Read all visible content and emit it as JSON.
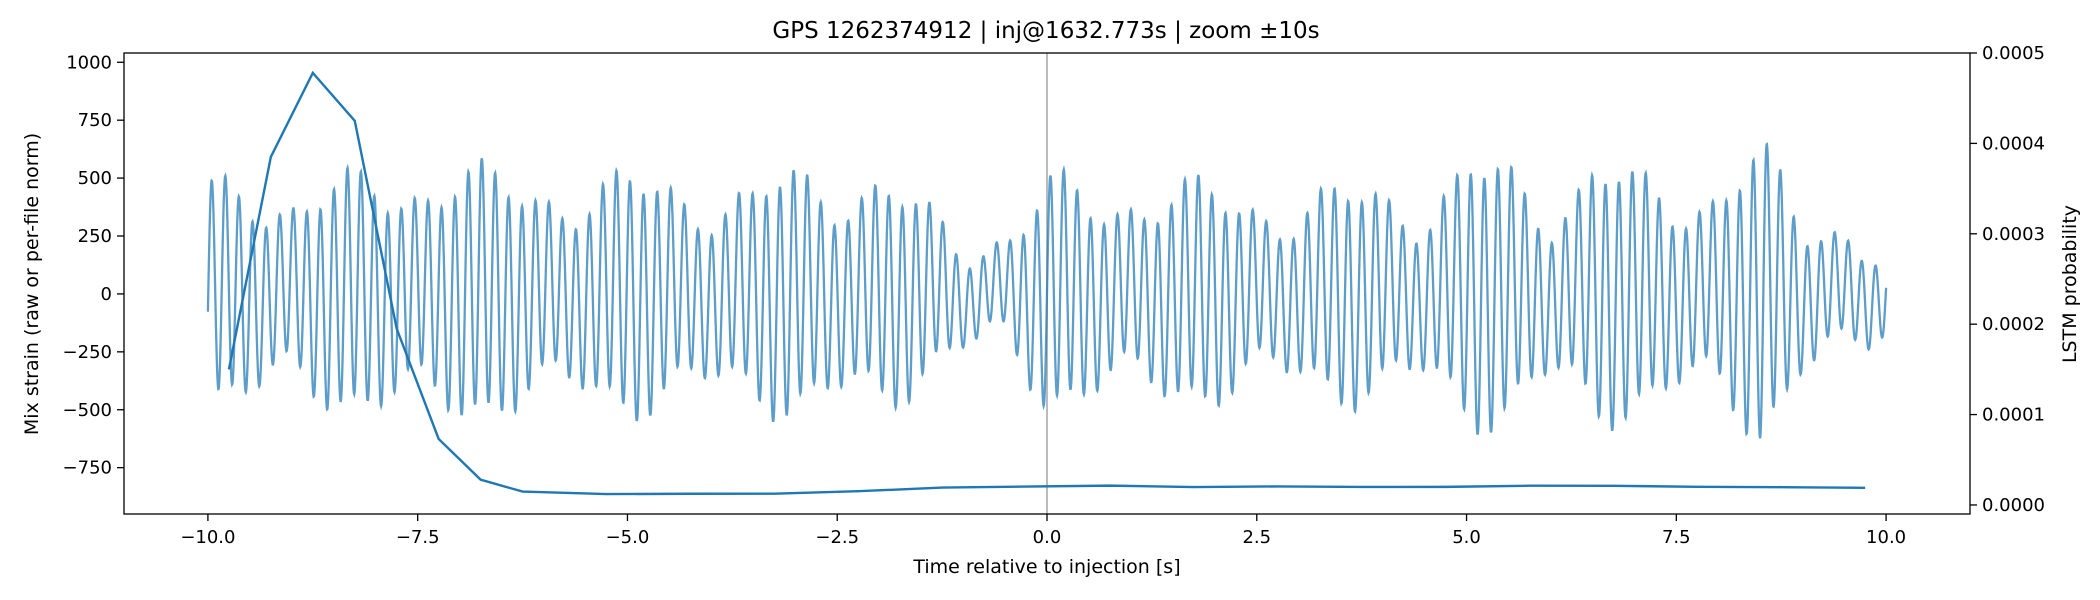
{
  "chart_data": {
    "type": "line",
    "title": "GPS 1262374912 | inj@1632.773s | zoom ±10s",
    "xlabel": "Time relative to injection [s]",
    "ylabel_left": "Mix strain (raw or per-file norm)",
    "ylabel_right": "LSTM probability",
    "xlim": [
      -11,
      11
    ],
    "ylim_left": [
      -950,
      1040
    ],
    "ylim_right": [
      -1e-05,
      0.0005
    ],
    "x_ticks": [
      -10.0,
      -7.5,
      -5.0,
      -2.5,
      0.0,
      2.5,
      5.0,
      7.5,
      10.0
    ],
    "x_tick_labels": [
      "−10.0",
      "−7.5",
      "−5.0",
      "−2.5",
      "0.0",
      "2.5",
      "5.0",
      "7.5",
      "10.0"
    ],
    "y_left_ticks": [
      -750,
      -500,
      -250,
      0,
      250,
      500,
      750,
      1000
    ],
    "y_left_tick_labels": [
      "−750",
      "−500",
      "−250",
      "0",
      "250",
      "500",
      "750",
      "1000"
    ],
    "y_right_ticks": [
      0.0,
      0.0001,
      0.0002,
      0.0003,
      0.0004,
      0.0005
    ],
    "y_right_tick_labels": [
      "0.0000",
      "0.0001",
      "0.0002",
      "0.0003",
      "0.0004",
      "0.0005"
    ],
    "injection_marker_x": 0.0,
    "grid": false,
    "colors": {
      "strain": "#1f77b4",
      "probability": "#1f77b4",
      "marker": "#bbbbbb"
    },
    "series": [
      {
        "axis": "left",
        "style": "oscillating strain trace, approx. 6 Hz, amplitude envelope sampled below",
        "envelope": {
          "x": [
            -10.0,
            -9.5,
            -9.0,
            -8.5,
            -8.0,
            -7.5,
            -7.0,
            -6.5,
            -6.0,
            -5.5,
            -5.0,
            -4.5,
            -4.0,
            -3.5,
            -3.0,
            -2.5,
            -2.0,
            -1.5,
            -1.0,
            -0.5,
            0.0,
            0.5,
            1.0,
            1.5,
            2.0,
            2.5,
            3.0,
            3.5,
            4.0,
            4.5,
            5.0,
            5.5,
            6.0,
            6.5,
            7.0,
            7.5,
            8.0,
            8.5,
            9.0,
            9.5,
            10.0
          ],
          "y": [
            470,
            520,
            450,
            480,
            520,
            560,
            560,
            500,
            520,
            480,
            500,
            520,
            470,
            440,
            550,
            540,
            530,
            380,
            240,
            250,
            500,
            450,
            480,
            470,
            460,
            440,
            400,
            450,
            480,
            420,
            560,
            560,
            420,
            600,
            500,
            460,
            520,
            650,
            330,
            320,
            180
          ]
        }
      },
      {
        "axis": "right",
        "style": "LSTM probability",
        "x": [
          -9.75,
          -9.25,
          -8.75,
          -8.25,
          -7.75,
          -7.25,
          -6.75,
          -6.25,
          -5.25,
          -4.25,
          -3.25,
          -2.25,
          -1.25,
          -0.25,
          0.75,
          1.75,
          2.75,
          3.75,
          4.75,
          5.75,
          6.75,
          7.75,
          8.75,
          9.75
        ],
        "y": [
          0.00015,
          0.000385,
          0.000478,
          0.000425,
          0.000195,
          7.3e-05,
          2.8e-05,
          1.48e-05,
          1.2e-05,
          1.24e-05,
          1.25e-05,
          1.52e-05,
          1.92e-05,
          2.03e-05,
          2.14e-05,
          1.98e-05,
          2.05e-05,
          1.99e-05,
          2e-05,
          2.13e-05,
          2.12e-05,
          2.01e-05,
          1.97e-05,
          1.9e-05
        ]
      }
    ]
  }
}
